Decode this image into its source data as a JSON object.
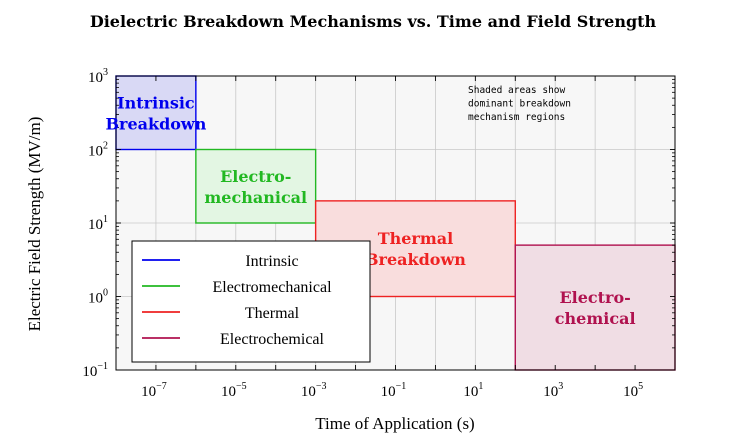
{
  "chart_data": {
    "type": "area",
    "title": "Dielectric Breakdown Mechanisms vs. Time and Field Strength",
    "xlabel": "Time of Application (s)",
    "ylabel": "Electric Field Strength (MV/m)",
    "xscale": "log",
    "yscale": "log",
    "xlim": [
      1e-08,
      1000000.0
    ],
    "ylim": [
      0.1,
      1000
    ],
    "x_tick_exponents": [
      -7,
      -5,
      -3,
      -1,
      1,
      3,
      5
    ],
    "y_tick_exponents": [
      -1,
      0,
      1,
      2,
      3
    ],
    "grid": true,
    "annotation": [
      "Shaded areas show",
      "dominant breakdown",
      "mechanism regions"
    ],
    "legend_position": "bottom-left",
    "series": [
      {
        "name": "Intrinsic",
        "label_lines": [
          "Intrinsic",
          "Breakdown"
        ],
        "color": "#0000ee",
        "fill": "#d9d9f5",
        "x_range": [
          1e-08,
          1e-06
        ],
        "y_range": [
          100,
          1000
        ]
      },
      {
        "name": "Electromechanical",
        "label_lines": [
          "Electro-",
          "mechanical"
        ],
        "color": "#22b822",
        "fill": "#e3f6e3",
        "x_range": [
          1e-06,
          0.001
        ],
        "y_range": [
          10,
          100
        ]
      },
      {
        "name": "Thermal",
        "label_lines": [
          "Thermal",
          "Breakdown"
        ],
        "color": "#ee2222",
        "fill": "#f9dddd",
        "x_range": [
          0.001,
          100
        ],
        "y_range": [
          1,
          20
        ]
      },
      {
        "name": "Electrochemical",
        "label_lines": [
          "Electro-",
          "chemical"
        ],
        "color": "#b0124f",
        "fill": "#f0dde4",
        "x_range": [
          100,
          1000000.0
        ],
        "y_range": [
          0.1,
          5
        ]
      }
    ]
  }
}
